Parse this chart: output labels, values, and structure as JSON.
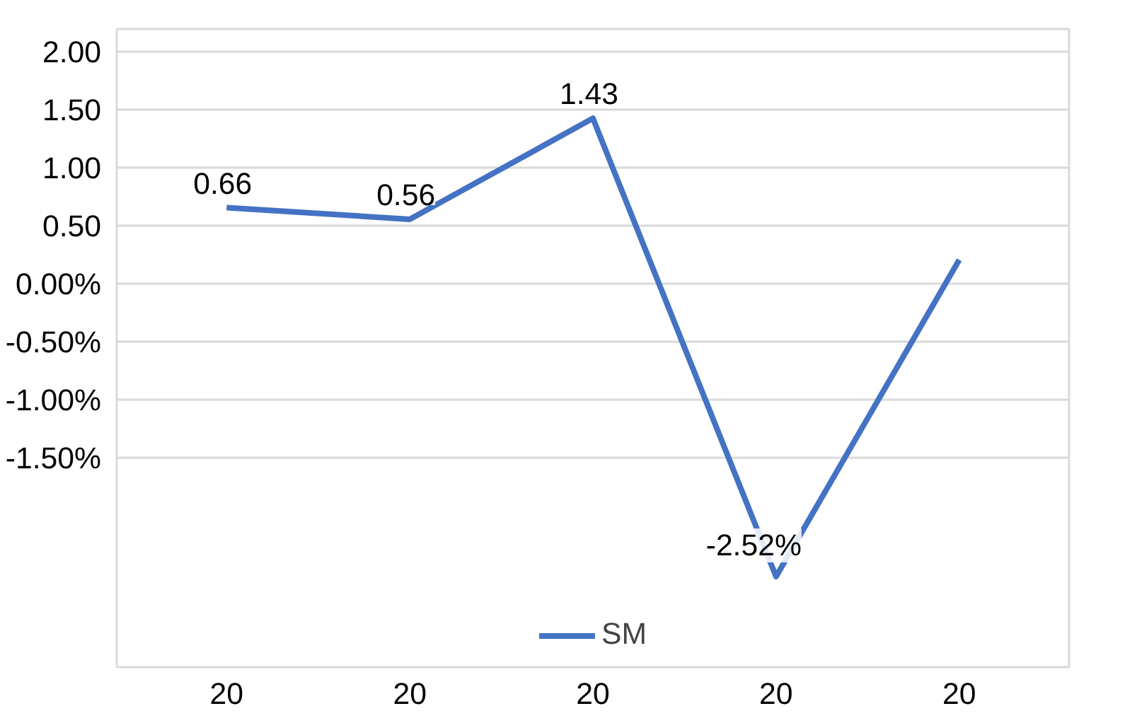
{
  "chart_data": {
    "type": "line",
    "categories": [
      "20",
      "20",
      "20",
      "20",
      "20"
    ],
    "series": [
      {
        "name": "SM",
        "color": "#4472c4",
        "values": [
          0.66,
          0.56,
          1.43,
          -2.52,
          0.21
        ],
        "value_labels": [
          "0.66",
          "0.56",
          "1.43",
          "-2.52%",
          null
        ]
      }
    ],
    "ylim": [
      -3.3,
      2.2
    ],
    "yticks": [
      {
        "value": 2,
        "label": "2.00"
      },
      {
        "value": 1.5,
        "label": "1.50"
      },
      {
        "value": 1,
        "label": "1.00"
      },
      {
        "value": 0.5,
        "label": "0.50"
      },
      {
        "value": 0,
        "label": "0.00%"
      },
      {
        "value": -0.5,
        "label": "-0.50%"
      },
      {
        "value": -1,
        "label": "-1.00%"
      },
      {
        "value": -1.5,
        "label": "-1.50%"
      }
    ],
    "grid": "y",
    "legend": "bottom",
    "line_style": "solid"
  }
}
